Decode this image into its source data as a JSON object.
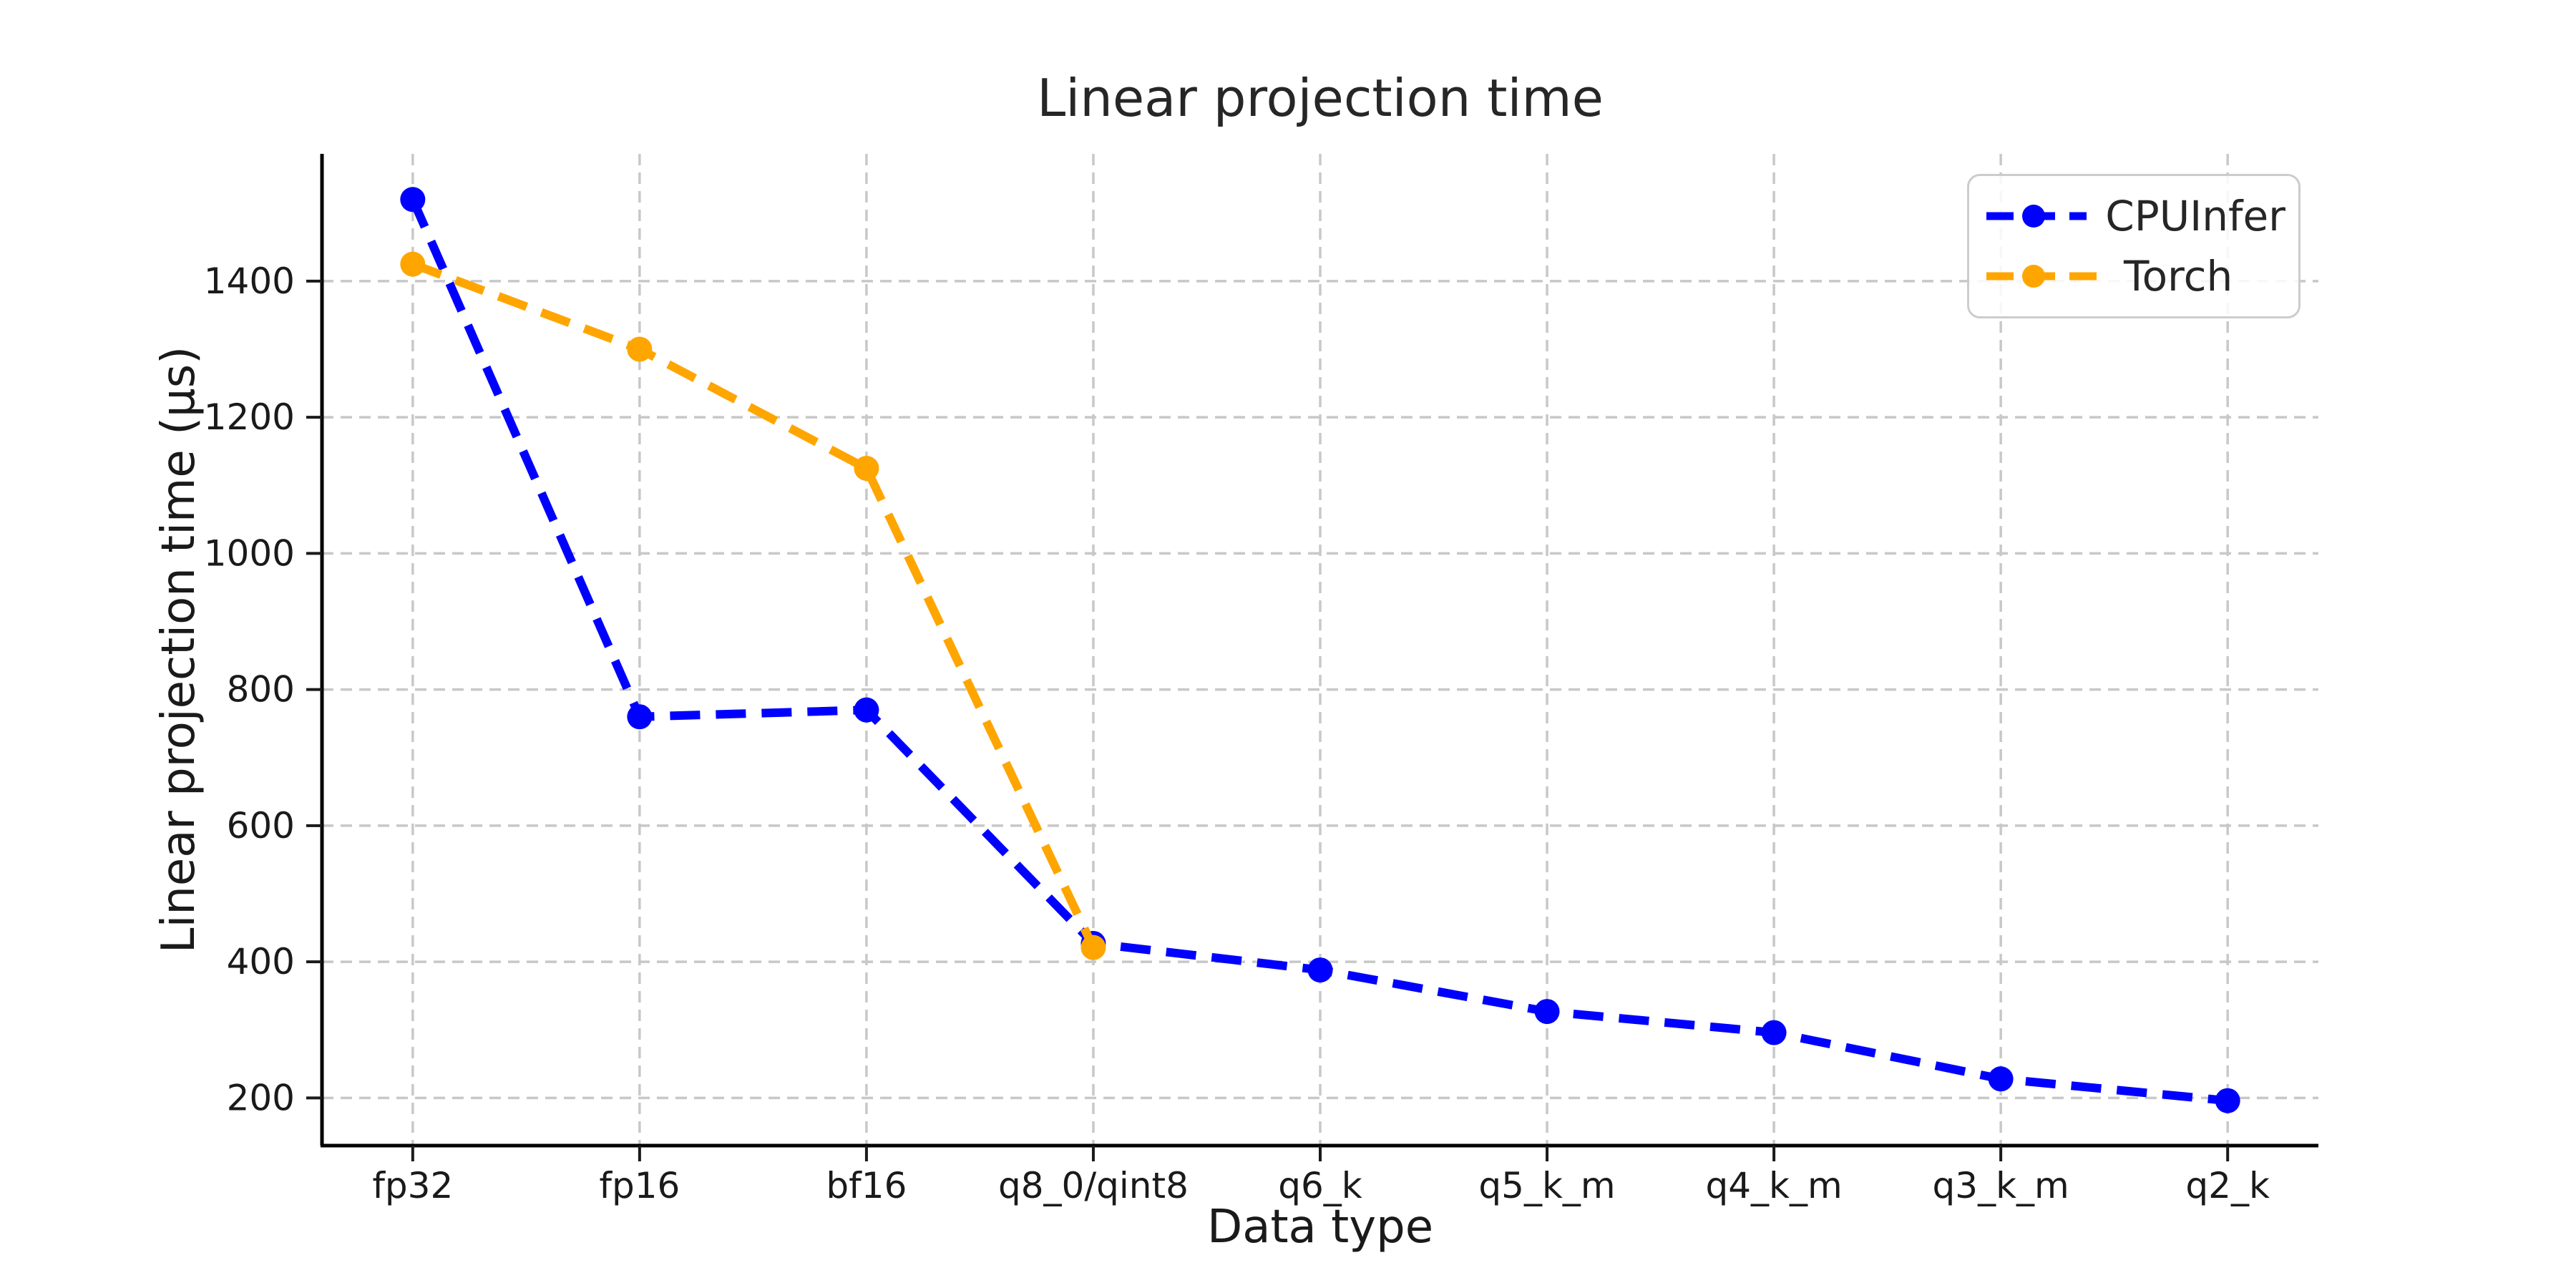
{
  "chart_data": {
    "type": "line",
    "title": "Linear projection time",
    "xlabel": "Data type",
    "ylabel": "Linear projection time (µs)",
    "categories": [
      "fp32",
      "fp16",
      "bf16",
      "q8_0/qint8",
      "q6_k",
      "q5_k_m",
      "q4_k_m",
      "q3_k_m",
      "q2_k"
    ],
    "series": [
      {
        "name": "CPUInfer",
        "color": "#0000ff",
        "values": [
          1520,
          760,
          770,
          427,
          388,
          327,
          296,
          228,
          196
        ]
      },
      {
        "name": "Torch",
        "color": "#ffa500",
        "values": [
          1425,
          1300,
          1125,
          421
        ]
      }
    ],
    "yticks": [
      200,
      400,
      600,
      800,
      1000,
      1200,
      1400
    ],
    "ylim": [
      130,
      1587
    ],
    "grid": true,
    "line_style": "dashed",
    "marker": "circle",
    "legend_position": "upper right"
  },
  "palette": {
    "background": "#ffffff",
    "grid": "#c8c8c8",
    "spine": "#000000",
    "text": "#1a1a1a",
    "legend_border": "#cccccc"
  }
}
